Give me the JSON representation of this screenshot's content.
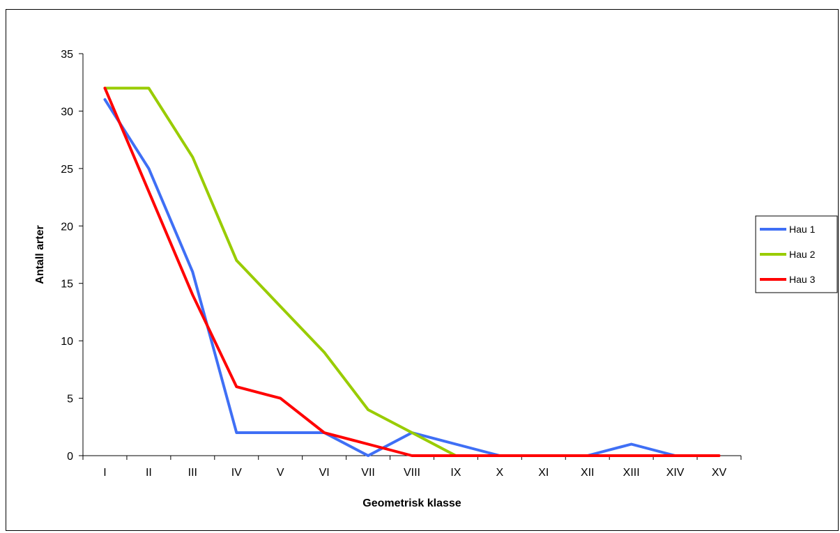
{
  "chart_data": {
    "type": "line",
    "title": "",
    "xlabel": "Geometrisk klasse",
    "ylabel": "Antall arter",
    "categories": [
      "I",
      "II",
      "III",
      "IV",
      "V",
      "VI",
      "VII",
      "VIII",
      "IX",
      "X",
      "XI",
      "XII",
      "XIII",
      "XIV",
      "XV"
    ],
    "ylim": [
      0,
      35
    ],
    "yticks": [
      0,
      5,
      10,
      15,
      20,
      25,
      30,
      35
    ],
    "grid": false,
    "legend_position": "right",
    "series": [
      {
        "name": "Hau 1",
        "color": "#3f6ff5",
        "values": [
          31,
          25,
          16,
          2,
          2,
          2,
          0,
          2,
          1,
          0,
          0,
          0,
          1,
          0,
          null
        ]
      },
      {
        "name": "Hau 2",
        "color": "#99cc00",
        "values": [
          32,
          32,
          26,
          17,
          13,
          9,
          4,
          2,
          0,
          null,
          null,
          null,
          null,
          null,
          null
        ]
      },
      {
        "name": "Hau 3",
        "color": "#ff0000",
        "values": [
          32,
          23,
          14,
          6,
          5,
          2,
          1,
          0,
          0,
          0,
          0,
          0,
          0,
          0,
          0
        ]
      }
    ]
  }
}
